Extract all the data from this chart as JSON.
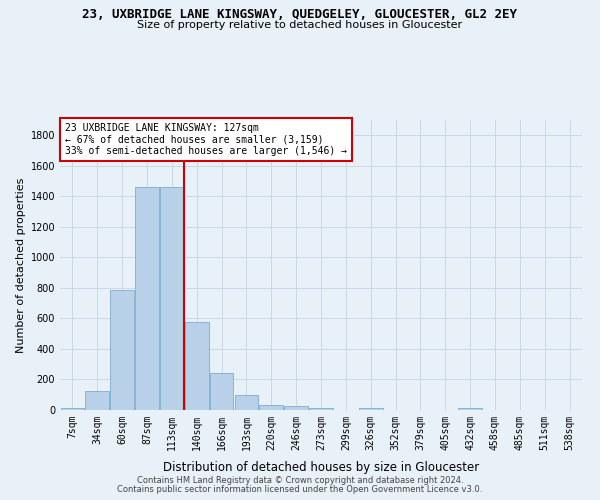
{
  "title": "23, UXBRIDGE LANE KINGSWAY, QUEDGELEY, GLOUCESTER, GL2 2EY",
  "subtitle": "Size of property relative to detached houses in Gloucester",
  "xlabel": "Distribution of detached houses by size in Gloucester",
  "ylabel": "Number of detached properties",
  "bar_color": "#b8d0e8",
  "bar_edge_color": "#7aaed4",
  "bar_values": [
    10,
    125,
    785,
    1460,
    1460,
    575,
    245,
    100,
    35,
    25,
    15,
    0,
    15,
    0,
    0,
    0,
    10,
    0,
    0,
    0,
    0
  ],
  "categories": [
    "7sqm",
    "34sqm",
    "60sqm",
    "87sqm",
    "113sqm",
    "140sqm",
    "166sqm",
    "193sqm",
    "220sqm",
    "246sqm",
    "273sqm",
    "299sqm",
    "326sqm",
    "352sqm",
    "379sqm",
    "405sqm",
    "432sqm",
    "458sqm",
    "485sqm",
    "511sqm",
    "538sqm"
  ],
  "ylim": [
    0,
    1900
  ],
  "yticks": [
    0,
    200,
    400,
    600,
    800,
    1000,
    1200,
    1400,
    1600,
    1800
  ],
  "property_size": 127,
  "red_line_x": 4.5,
  "annotation_text": "23 UXBRIDGE LANE KINGSWAY: 127sqm\n← 67% of detached houses are smaller (3,159)\n33% of semi-detached houses are larger (1,546) →",
  "footer1": "Contains HM Land Registry data © Crown copyright and database right 2024.",
  "footer2": "Contains public sector information licensed under the Open Government Licence v3.0.",
  "grid_color": "#ccd8ea",
  "background_color": "#e8f0f8",
  "red_line_color": "#cc0000",
  "annotation_box_color": "#ffffff",
  "annotation_box_edge": "#cc0000",
  "title_fontsize": 9,
  "subtitle_fontsize": 8,
  "ylabel_fontsize": 8,
  "xlabel_fontsize": 8.5,
  "tick_fontsize": 7,
  "annotation_fontsize": 7,
  "footer_fontsize": 6
}
